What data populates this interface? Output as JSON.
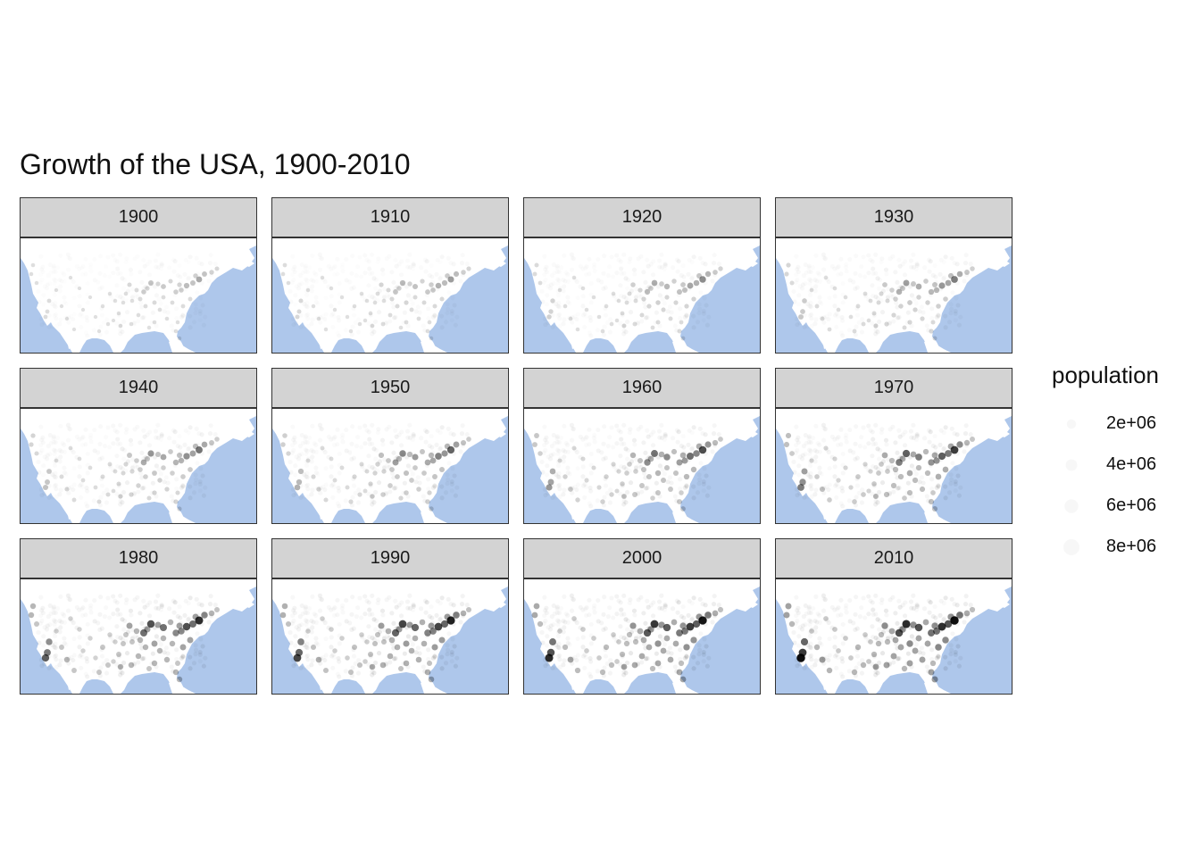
{
  "title": "Growth of the USA, 1900-2010",
  "colors": {
    "water": "#aec7eb",
    "land": "#ffffff",
    "strip": "#d3d3d3",
    "point": "#000000"
  },
  "chart_data": {
    "type": "scatter",
    "facet_by": "year",
    "panels": [
      {
        "label": "1900",
        "year": 1900,
        "intensity": 0.35
      },
      {
        "label": "1910",
        "year": 1910,
        "intensity": 0.42
      },
      {
        "label": "1920",
        "year": 1920,
        "intensity": 0.5
      },
      {
        "label": "1930",
        "year": 1930,
        "intensity": 0.58
      },
      {
        "label": "1940",
        "year": 1940,
        "intensity": 0.62
      },
      {
        "label": "1950",
        "year": 1950,
        "intensity": 0.7
      },
      {
        "label": "1960",
        "year": 1960,
        "intensity": 0.8
      },
      {
        "label": "1970",
        "year": 1970,
        "intensity": 0.88
      },
      {
        "label": "1980",
        "year": 1980,
        "intensity": 0.95
      },
      {
        "label": "1990",
        "year": 1990,
        "intensity": 1.0
      },
      {
        "label": "2000",
        "year": 2000,
        "intensity": 1.05
      },
      {
        "label": "2010",
        "year": 2010,
        "intensity": 1.1
      }
    ],
    "legend": {
      "title": "population",
      "entries": [
        {
          "label": "2e+06",
          "value": 2000000
        },
        {
          "label": "4e+06",
          "value": 4000000
        },
        {
          "label": "6e+06",
          "value": 6000000
        },
        {
          "label": "8e+06",
          "value": 8000000
        }
      ]
    }
  }
}
